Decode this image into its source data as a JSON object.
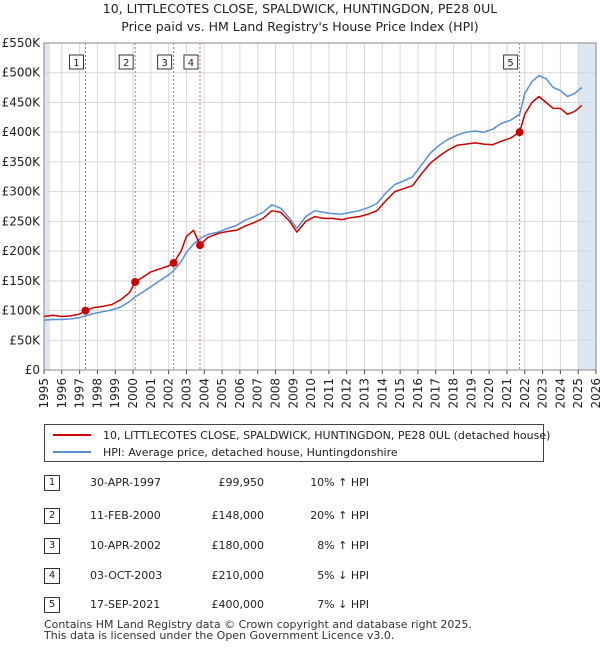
{
  "title_line1": "10, LITTLECOTES CLOSE, SPALDWICK, HUNTINGDON, PE28 0UL",
  "title_line2": "Price paid vs. HM Land Registry's House Price Index (HPI)",
  "colors": {
    "property": "#cc0000",
    "hpi": "#5b8fd4",
    "band": "#dde6f3",
    "grid": "#d8d8d8",
    "marker_line": "#e06060"
  },
  "legend": {
    "property_label": "10, LITTLECOTES CLOSE, SPALDWICK, HUNTINGDON, PE28 0UL (detached house)",
    "hpi_label": "HPI: Average price, detached house, Huntingdonshire"
  },
  "sales": [
    {
      "num": "1",
      "date": "30-APR-1997",
      "price": "£99,950",
      "hpi": "10% ↑ HPI"
    },
    {
      "num": "2",
      "date": "11-FEB-2000",
      "price": "£148,000",
      "hpi": "20% ↑ HPI"
    },
    {
      "num": "3",
      "date": "10-APR-2002",
      "price": "£180,000",
      "hpi": "8% ↑ HPI"
    },
    {
      "num": "4",
      "date": "03-OCT-2003",
      "price": "£210,000",
      "hpi": "5% ↓ HPI"
    },
    {
      "num": "5",
      "date": "17-SEP-2021",
      "price": "£400,000",
      "hpi": "7% ↓ HPI"
    }
  ],
  "footer_line1": "Contains HM Land Registry data © Crown copyright and database right 2025.",
  "footer_line2": "This data is licensed under the Open Government Licence v3.0.",
  "chart_data": {
    "type": "line",
    "title": "10, LITTLECOTES CLOSE, SPALDWICK, HUNTINGDON, PE28 0UL",
    "subtitle": "Price paid vs. HM Land Registry's House Price Index (HPI)",
    "xlabel": "",
    "ylabel": "",
    "xlim": [
      1995,
      2026
    ],
    "ylim": [
      0,
      550000
    ],
    "x_ticks": [
      "1995",
      "1996",
      "1997",
      "1998",
      "1999",
      "2000",
      "2001",
      "2002",
      "2003",
      "2004",
      "2005",
      "2006",
      "2007",
      "2008",
      "2009",
      "2010",
      "2011",
      "2012",
      "2013",
      "2014",
      "2015",
      "2016",
      "2017",
      "2018",
      "2019",
      "2020",
      "2021",
      "2022",
      "2023",
      "2024",
      "2025",
      "2026"
    ],
    "y_ticks": [
      0,
      50000,
      100000,
      150000,
      200000,
      250000,
      300000,
      350000,
      400000,
      450000,
      500000,
      550000
    ],
    "y_tick_labels": [
      "£0",
      "£50K",
      "£100K",
      "£150K",
      "£200K",
      "£250K",
      "£300K",
      "£350K",
      "£400K",
      "£450K",
      "£500K",
      "£550K"
    ],
    "grid": true,
    "series": [
      {
        "name": "10, LITTLECOTES CLOSE, SPALDWICK, HUNTINGDON, PE28 0UL (detached house)",
        "color": "#cc0000",
        "x": [
          1995.0,
          1995.5,
          1996.0,
          1996.5,
          1997.0,
          1997.33,
          1997.8,
          1998.3,
          1998.8,
          1999.3,
          1999.8,
          2000.12,
          2000.5,
          2001.0,
          2001.5,
          2002.0,
          2002.28,
          2002.7,
          2003.0,
          2003.4,
          2003.76,
          2004.2,
          2004.8,
          2005.3,
          2005.8,
          2006.3,
          2006.8,
          2007.3,
          2007.8,
          2008.3,
          2008.8,
          2009.2,
          2009.7,
          2010.2,
          2010.7,
          2011.2,
          2011.7,
          2012.2,
          2012.7,
          2013.2,
          2013.7,
          2014.2,
          2014.7,
          2015.2,
          2015.7,
          2016.2,
          2016.7,
          2017.2,
          2017.7,
          2018.2,
          2018.7,
          2019.2,
          2019.7,
          2020.2,
          2020.7,
          2021.2,
          2021.71,
          2022.0,
          2022.4,
          2022.8,
          2023.2,
          2023.6,
          2024.0,
          2024.4,
          2024.8,
          2025.2
        ],
        "values": [
          90000,
          92000,
          90000,
          91000,
          94000,
          99950,
          105000,
          107000,
          110000,
          118000,
          130000,
          148000,
          155000,
          165000,
          170000,
          175000,
          180000,
          200000,
          225000,
          235000,
          210000,
          223000,
          230000,
          233000,
          235000,
          242000,
          248000,
          255000,
          268000,
          265000,
          250000,
          232000,
          250000,
          258000,
          255000,
          255000,
          253000,
          256000,
          258000,
          262000,
          268000,
          285000,
          300000,
          305000,
          310000,
          330000,
          348000,
          360000,
          370000,
          378000,
          380000,
          382000,
          380000,
          379000,
          385000,
          390000,
          400000,
          430000,
          450000,
          460000,
          450000,
          440000,
          440000,
          430000,
          435000,
          445000
        ]
      },
      {
        "name": "HPI: Average price, detached house, Huntingdonshire",
        "color": "#5b8fd4",
        "x": [
          1995.0,
          1995.5,
          1996.0,
          1996.5,
          1997.0,
          1997.33,
          1997.8,
          1998.3,
          1998.8,
          1999.3,
          1999.8,
          2000.12,
          2000.5,
          2001.0,
          2001.5,
          2002.0,
          2002.28,
          2002.7,
          2003.0,
          2003.4,
          2003.76,
          2004.2,
          2004.8,
          2005.3,
          2005.8,
          2006.3,
          2006.8,
          2007.3,
          2007.8,
          2008.3,
          2008.8,
          2009.2,
          2009.7,
          2010.2,
          2010.7,
          2011.2,
          2011.7,
          2012.2,
          2012.7,
          2013.2,
          2013.7,
          2014.2,
          2014.7,
          2015.2,
          2015.7,
          2016.2,
          2016.7,
          2017.2,
          2017.7,
          2018.2,
          2018.7,
          2019.2,
          2019.7,
          2020.2,
          2020.7,
          2021.2,
          2021.71,
          2022.0,
          2022.4,
          2022.8,
          2023.2,
          2023.6,
          2024.0,
          2024.4,
          2024.8,
          2025.2
        ],
        "values": [
          84000,
          85000,
          85000,
          86000,
          88000,
          91000,
          95000,
          98000,
          101000,
          106000,
          115000,
          123000,
          130000,
          140000,
          150000,
          160000,
          167000,
          182000,
          198000,
          212000,
          221000,
          228000,
          232000,
          238000,
          243000,
          252000,
          258000,
          265000,
          278000,
          272000,
          255000,
          238000,
          258000,
          268000,
          265000,
          263000,
          262000,
          265000,
          268000,
          273000,
          280000,
          298000,
          312000,
          318000,
          325000,
          345000,
          365000,
          378000,
          388000,
          395000,
          400000,
          402000,
          400000,
          405000,
          415000,
          420000,
          430000,
          465000,
          485000,
          495000,
          490000,
          475000,
          470000,
          460000,
          465000,
          475000
        ]
      }
    ],
    "annotations": [
      {
        "label": "1",
        "x": 1997.33,
        "y": 99950
      },
      {
        "label": "2",
        "x": 2000.12,
        "y": 148000
      },
      {
        "label": "3",
        "x": 2002.28,
        "y": 180000
      },
      {
        "label": "4",
        "x": 2003.76,
        "y": 210000
      },
      {
        "label": "5",
        "x": 2021.71,
        "y": 400000
      }
    ],
    "shaded_ranges": [
      [
        1995.0,
        1995.33
      ],
      [
        2025.0,
        2026.0
      ]
    ]
  }
}
